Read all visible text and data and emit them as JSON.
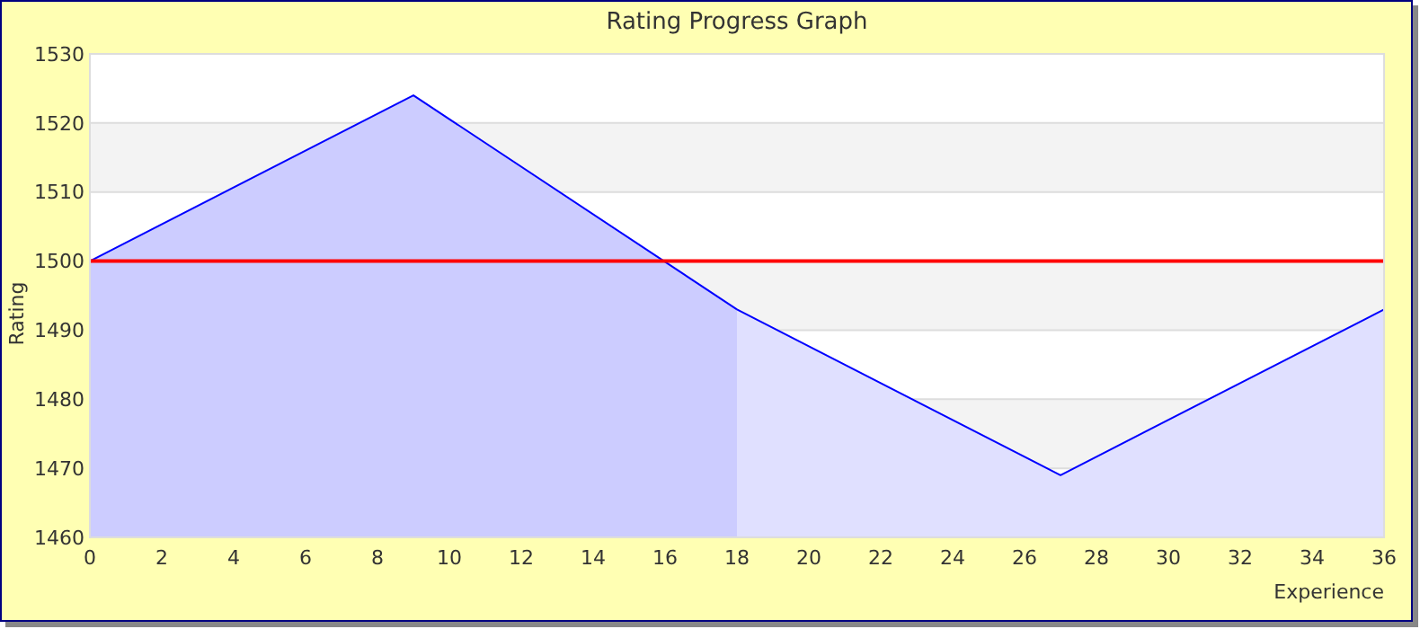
{
  "chart_data": {
    "type": "area",
    "title": "Rating Progress Graph",
    "xlabel": "Experience",
    "ylabel": "Rating",
    "xlim": [
      0,
      36
    ],
    "xticks": [
      0,
      2,
      4,
      6,
      8,
      10,
      12,
      14,
      16,
      18,
      20,
      22,
      24,
      26,
      28,
      30,
      32,
      34,
      36
    ],
    "ylim": [
      1460,
      1530
    ],
    "yticks": [
      1460,
      1470,
      1480,
      1490,
      1500,
      1510,
      1520,
      1530
    ],
    "series": [
      {
        "color": "#ccccff",
        "x": [
          0,
          9,
          18
        ],
        "values": [
          1500,
          1524,
          1493
        ]
      },
      {
        "color": "#e0e0ff",
        "x": [
          18,
          27,
          36
        ],
        "values": [
          1493,
          1469,
          1493
        ]
      }
    ],
    "ref_lines": [
      {
        "axis": "y",
        "value": 1500,
        "color": "#ff0000"
      }
    ],
    "grid": "y"
  }
}
